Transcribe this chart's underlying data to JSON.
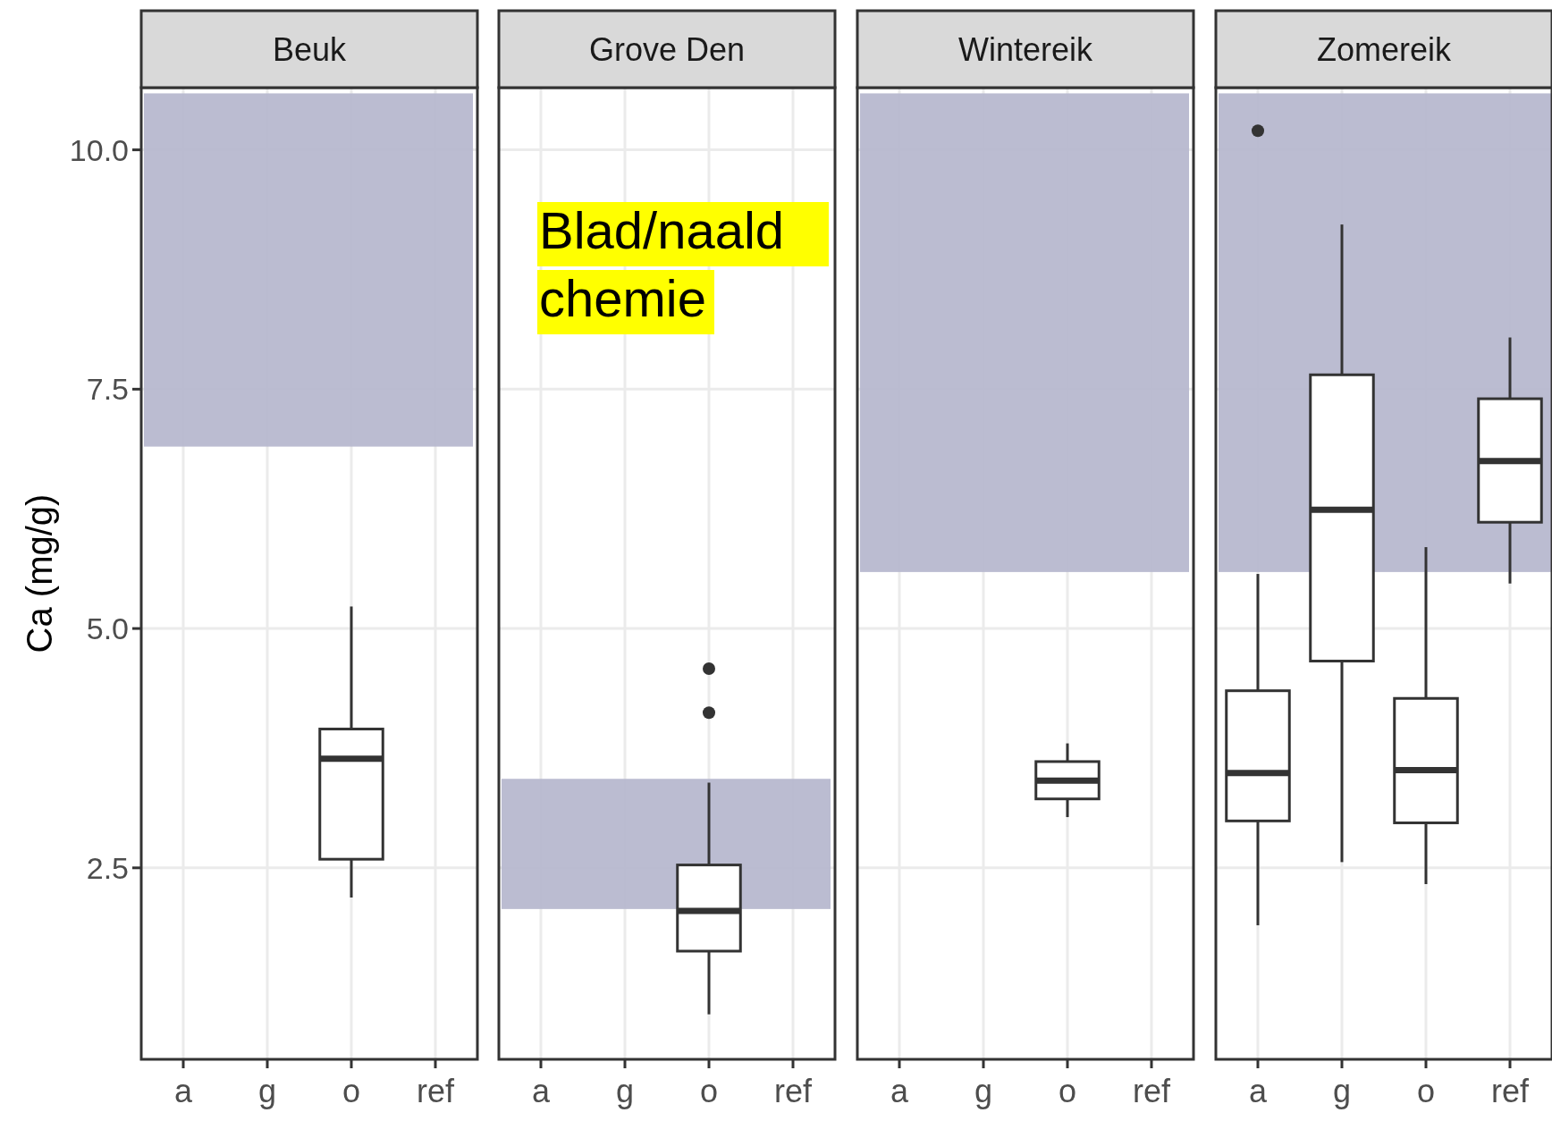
{
  "chart_data": [
    {
      "type": "box",
      "title": "Beuk",
      "ylabel": "Ca (mg/g)",
      "categories": [
        "a",
        "g",
        "o",
        "ref"
      ],
      "ylim": [
        0.5,
        10.65
      ],
      "yticks": [
        {
          "value": 2.5,
          "label": "2.5"
        },
        {
          "value": 5,
          "label": "5.0"
        },
        {
          "value": 7.5,
          "label": "7.5"
        },
        {
          "value": 10,
          "label": "10.0"
        }
      ],
      "grid": true,
      "boxes": [
        null,
        null,
        {
          "low": 2.19,
          "q1": 2.59,
          "median": 3.64,
          "q3": 3.95,
          "high": 5.23
        },
        null
      ],
      "bands": [
        {
          "axis": "y",
          "from": 6.9,
          "to": 10.59,
          "color": "#b7b8cf"
        }
      ]
    },
    {
      "type": "box",
      "title": "Grove Den",
      "categories": [
        "a",
        "g",
        "o",
        "ref"
      ],
      "ylim": [
        0.5,
        10.65
      ],
      "yticks": [
        2.5,
        5,
        7.5,
        10
      ],
      "grid": true,
      "tick_labels": "x",
      "boxes": [
        null,
        null,
        {
          "low": 0.97,
          "q1": 1.63,
          "median": 2.05,
          "q3": 2.53,
          "high": 3.39,
          "outliers": [
            4.12,
            4.58
          ]
        },
        null
      ],
      "bands": [
        {
          "axis": "y",
          "from": 2.07,
          "to": 3.43,
          "color": "#b7b8cf"
        }
      ],
      "annotations": [
        "Blad/naald chemie"
      ]
    },
    {
      "type": "box",
      "title": "Wintereik",
      "categories": [
        "a",
        "g",
        "o",
        "ref"
      ],
      "ylim": [
        0.5,
        10.65
      ],
      "yticks": [
        2.5,
        5,
        7.5,
        10
      ],
      "grid": true,
      "tick_labels": "x",
      "boxes": [
        null,
        null,
        {
          "low": 3.03,
          "q1": 3.22,
          "median": 3.41,
          "q3": 3.61,
          "high": 3.8
        },
        null
      ],
      "bands": [
        {
          "axis": "y",
          "from": 5.59,
          "to": 10.59,
          "color": "#b7b8cf"
        }
      ]
    },
    {
      "type": "box",
      "title": "Zomereik",
      "categories": [
        "a",
        "g",
        "o",
        "ref"
      ],
      "ylim": [
        0.5,
        10.65
      ],
      "yticks": [
        2.5,
        5,
        7.5,
        10
      ],
      "grid": true,
      "tick_labels": "x",
      "boxes": [
        {
          "low": 1.9,
          "q1": 2.99,
          "median": 3.49,
          "q3": 4.35,
          "high": 5.57,
          "outliers": [
            10.2
          ]
        },
        {
          "low": 2.56,
          "q1": 4.66,
          "median": 6.24,
          "q3": 7.65,
          "high": 9.22
        },
        {
          "low": 2.33,
          "q1": 2.97,
          "median": 3.52,
          "q3": 4.27,
          "high": 5.85
        },
        {
          "low": 5.47,
          "q1": 6.11,
          "median": 6.75,
          "q3": 7.4,
          "high": 8.04
        }
      ],
      "bands": [
        {
          "axis": "y",
          "from": 5.59,
          "to": 10.59,
          "color": "#b7b8cf"
        }
      ]
    }
  ]
}
